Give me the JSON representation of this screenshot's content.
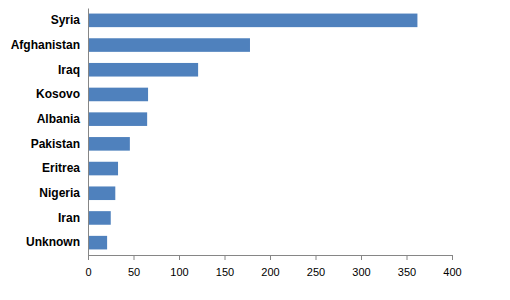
{
  "chart_data": {
    "type": "bar",
    "orientation": "horizontal",
    "categories": [
      "Syria",
      "Afghanistan",
      "Iraq",
      "Kosovo",
      "Albania",
      "Pakistan",
      "Eritrea",
      "Nigeria",
      "Iran",
      "Unknown"
    ],
    "values": [
      362,
      178,
      121,
      66,
      65,
      46,
      33,
      30,
      25,
      21
    ],
    "color": "#4f81bd",
    "xlim": [
      0,
      400
    ],
    "xticks": [
      0,
      50,
      100,
      150,
      200,
      250,
      300,
      350,
      400
    ],
    "grid": false
  }
}
